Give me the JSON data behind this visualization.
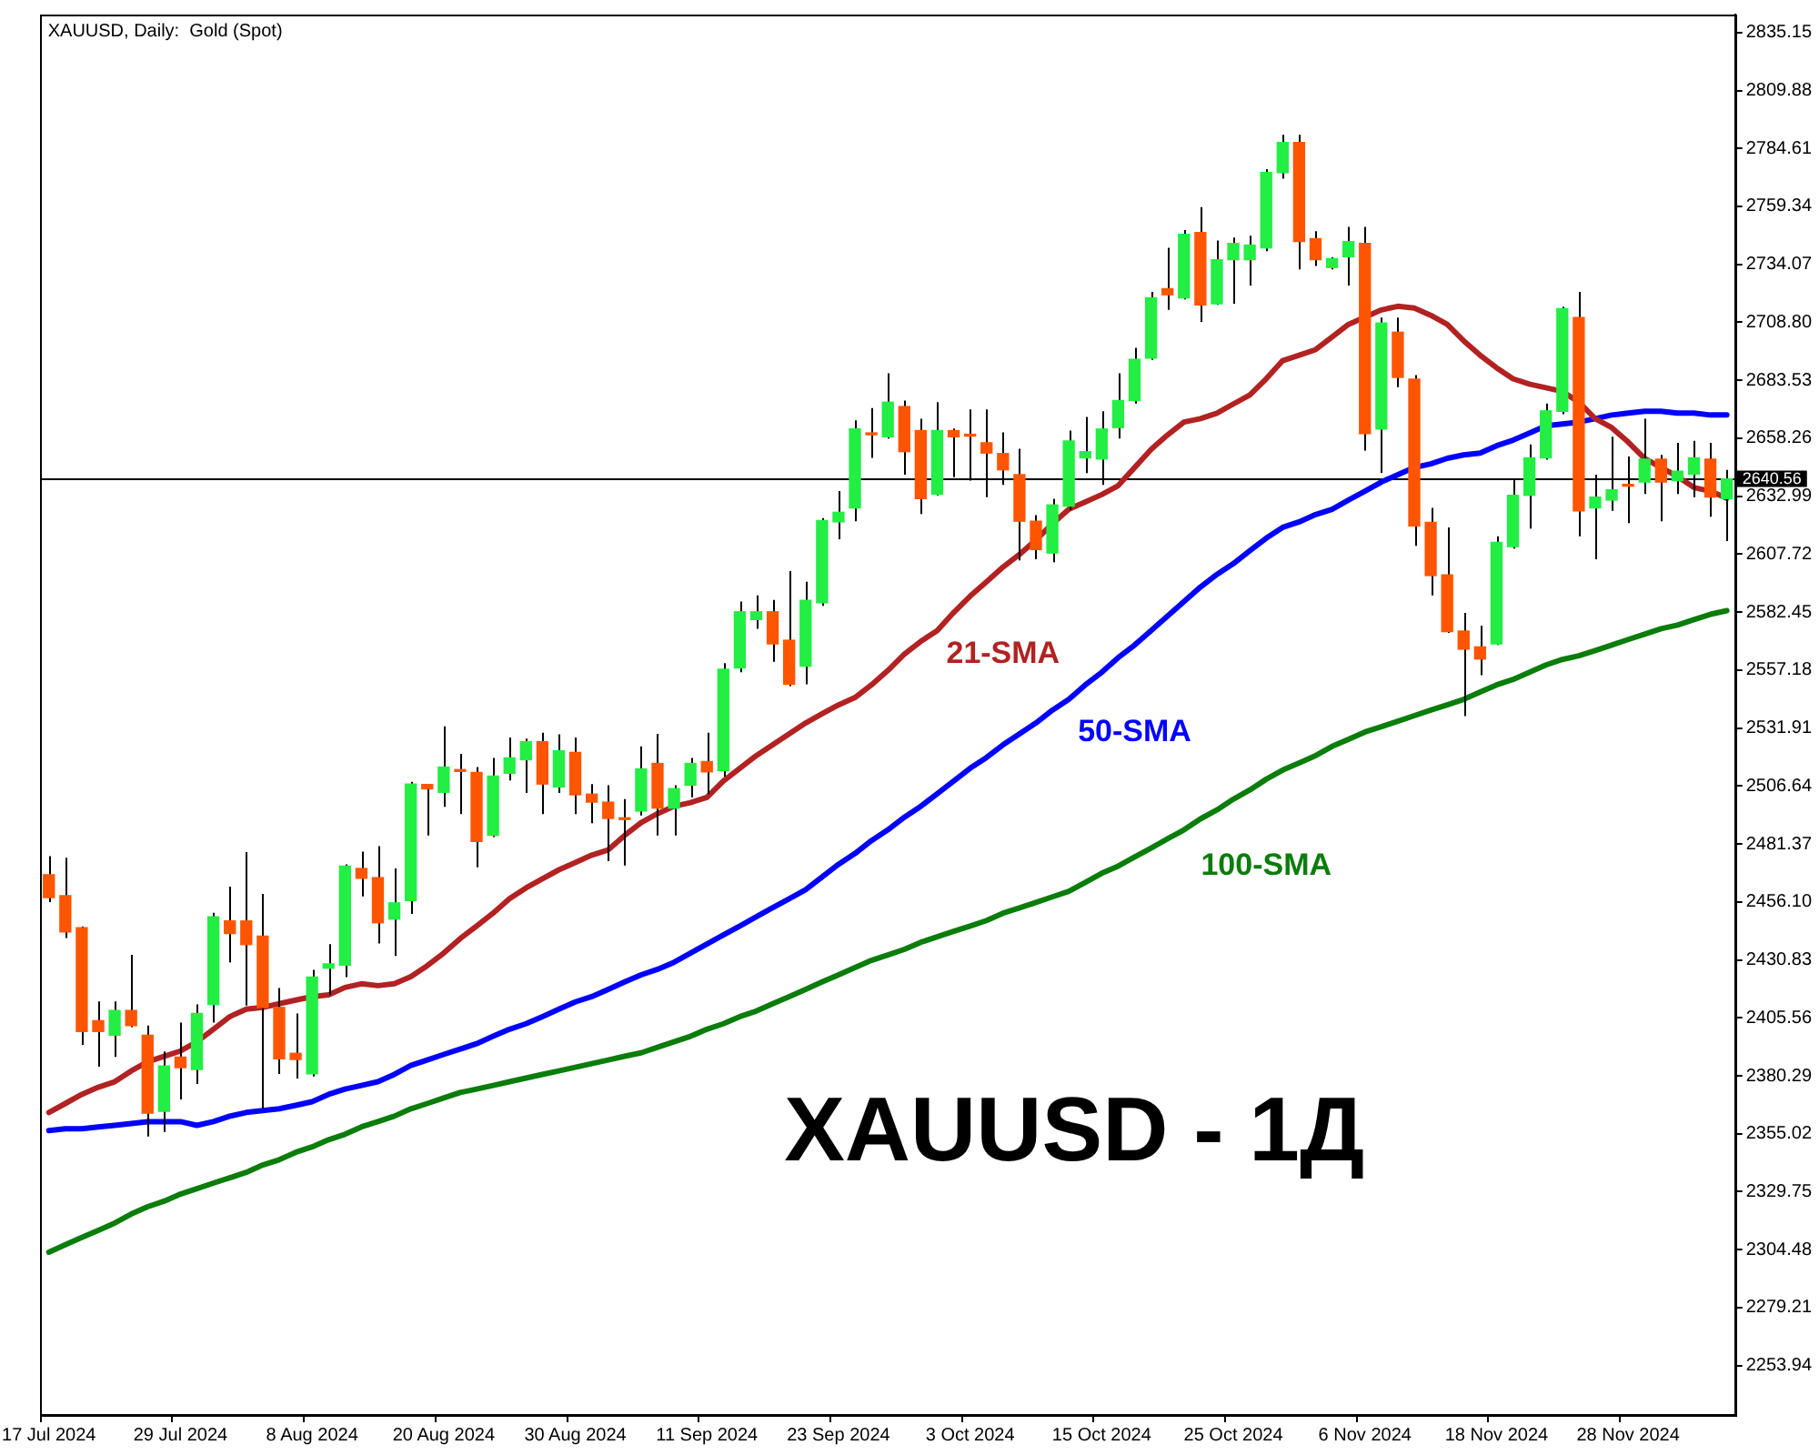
{
  "chart_data": {
    "type": "candlestick",
    "title": "XAUUSD, Daily:  Gold (Spot)",
    "categories": [
      "17 Jul 2024",
      null,
      null,
      null,
      null,
      null,
      null,
      null,
      "29 Jul 2024",
      null,
      null,
      null,
      null,
      null,
      null,
      null,
      "8 Aug 2024",
      null,
      null,
      null,
      null,
      null,
      null,
      null,
      "20 Aug 2024",
      null,
      null,
      null,
      null,
      null,
      null,
      null,
      "30 Aug 2024",
      null,
      null,
      null,
      null,
      null,
      null,
      null,
      "11 Sep 2024",
      null,
      null,
      null,
      null,
      null,
      null,
      null,
      "23 Sep 2024",
      null,
      null,
      null,
      null,
      null,
      null,
      null,
      "3 Oct 2024",
      null,
      null,
      null,
      null,
      null,
      null,
      null,
      "15 Oct 2024",
      null,
      null,
      null,
      null,
      null,
      null,
      null,
      "25 Oct 2024",
      null,
      null,
      null,
      null,
      null,
      null,
      null,
      "6 Nov 2024",
      null,
      null,
      null,
      null,
      null,
      null,
      null,
      "18 Nov 2024",
      null,
      null,
      null,
      null,
      null,
      null,
      null,
      "28 Nov 2024",
      null,
      null,
      null,
      null,
      null,
      null
    ],
    "ohlc": [
      [
        2468,
        2476,
        2456,
        2458
      ],
      [
        2458.8,
        2475.4,
        2440.4,
        2443
      ],
      [
        2444.9,
        2445.4,
        2393.8,
        2399.6
      ],
      [
        2404.3,
        2412.7,
        2384.3,
        2399.6
      ],
      [
        2398,
        2412.7,
        2388.5,
        2408.8
      ],
      [
        2408.8,
        2433,
        2401.5,
        2402.2
      ],
      [
        2398,
        2402.2,
        2353.8,
        2364
      ],
      [
        2364.8,
        2390.9,
        2355.8,
        2384.6
      ],
      [
        2388.5,
        2403.5,
        2370,
        2383.8
      ],
      [
        2383,
        2411.4,
        2376.7,
        2407.5
      ],
      [
        2411.4,
        2451.4,
        2403.5,
        2449.6
      ],
      [
        2447.8,
        2462.8,
        2429.8,
        2442.3
      ],
      [
        2447.8,
        2477.8,
        2410.9,
        2437.5
      ],
      [
        2441.2,
        2459.6,
        2365.9,
        2410.1
      ],
      [
        2410.1,
        2418.6,
        2381.1,
        2387.7
      ],
      [
        2390.1,
        2407.5,
        2379.1,
        2387.4
      ],
      [
        2381.1,
        2426.5,
        2380,
        2423.3
      ],
      [
        2427.2,
        2437.7,
        2415.4,
        2429.1
      ],
      [
        2428.5,
        2472.5,
        2423.3,
        2471.7
      ],
      [
        2470.7,
        2478,
        2458.5,
        2466.4
      ],
      [
        2466.7,
        2480.4,
        2438,
        2447
      ],
      [
        2448.6,
        2470.7,
        2432.5,
        2455.7
      ],
      [
        2456.7,
        2508.5,
        2450.9,
        2507.5
      ],
      [
        2507.3,
        2507.5,
        2485.1,
        2505.4
      ],
      [
        2503.9,
        2532.6,
        2497.6,
        2514.9
      ],
      [
        2513.8,
        2520.7,
        2494.4,
        2513
      ],
      [
        2512.6,
        2514.9,
        2471.2,
        2482.5
      ],
      [
        2485.1,
        2518.9,
        2484.4,
        2511
      ],
      [
        2512.2,
        2527.8,
        2509.1,
        2518.9
      ],
      [
        2518.1,
        2527.3,
        2503.6,
        2526
      ],
      [
        2526,
        2529.9,
        2494.4,
        2507.5
      ],
      [
        2506.2,
        2529.2,
        2503.6,
        2522
      ],
      [
        2521.3,
        2527.8,
        2494.4,
        2502.8
      ],
      [
        2503.1,
        2507.5,
        2490.4,
        2499.6
      ],
      [
        2499.6,
        2507,
        2473.9,
        2492.5
      ],
      [
        2492.5,
        2500.9,
        2472,
        2492
      ],
      [
        2495.7,
        2523.9,
        2493.8,
        2514.1
      ],
      [
        2516.5,
        2529.4,
        2485.1,
        2497
      ],
      [
        2497,
        2507,
        2485.1,
        2505.5
      ],
      [
        2507,
        2518.9,
        2501.7,
        2516.5
      ],
      [
        2517.3,
        2529.9,
        2503.1,
        2512.8
      ],
      [
        2513.4,
        2560.2,
        2510.7,
        2557.6
      ],
      [
        2558.1,
        2587.1,
        2556.2,
        2582.6
      ],
      [
        2579.2,
        2589.7,
        2575.2,
        2582.6
      ],
      [
        2582.6,
        2587.8,
        2560.8,
        2568.6
      ],
      [
        2570.2,
        2600.3,
        2550.2,
        2551
      ],
      [
        2558.9,
        2595.7,
        2551,
        2587.6
      ],
      [
        2586.5,
        2623.4,
        2585.2,
        2622.4
      ],
      [
        2621.8,
        2635.2,
        2614.2,
        2626
      ],
      [
        2627.9,
        2666.1,
        2622.1,
        2662.3
      ],
      [
        2660.3,
        2671.4,
        2649.7,
        2659.8
      ],
      [
        2658.9,
        2686.6,
        2658.1,
        2674
      ],
      [
        2672.1,
        2674.7,
        2642.4,
        2652.4
      ],
      [
        2661.6,
        2666.8,
        2625.2,
        2631.9
      ],
      [
        2633.9,
        2674,
        2633.4,
        2661.6
      ],
      [
        2661.6,
        2662.5,
        2641.3,
        2658.9
      ],
      [
        2659.7,
        2670.8,
        2639.8,
        2659.2
      ],
      [
        2656.3,
        2670.8,
        2632.6,
        2651.8
      ],
      [
        2651.6,
        2660.8,
        2637.9,
        2644.5
      ],
      [
        2642.4,
        2653.7,
        2605,
        2622.1
      ],
      [
        2622.1,
        2624.7,
        2605.5,
        2609.7
      ],
      [
        2608.2,
        2631.9,
        2604.2,
        2629.2
      ],
      [
        2628.7,
        2661.6,
        2627,
        2657.1
      ],
      [
        2649.7,
        2667.6,
        2643.1,
        2652.4
      ],
      [
        2649.2,
        2670,
        2637.9,
        2662.3
      ],
      [
        2662.9,
        2686.6,
        2658.1,
        2674.7
      ],
      [
        2674.7,
        2697.7,
        2673.4,
        2692.7
      ],
      [
        2693.2,
        2722.1,
        2692.4,
        2719.5
      ],
      [
        2723.5,
        2741.3,
        2714.2,
        2720.8
      ],
      [
        2719.5,
        2749,
        2718.8,
        2747.2
      ],
      [
        2748,
        2759,
        2709,
        2716.4
      ],
      [
        2716.9,
        2744.5,
        2716.4,
        2736.1
      ],
      [
        2736.1,
        2745.8,
        2716.9,
        2743.2
      ],
      [
        2736.1,
        2746.6,
        2724.8,
        2742.5
      ],
      [
        2741.3,
        2775.6,
        2739.8,
        2774.1
      ],
      [
        2774.1,
        2790.6,
        2771.4,
        2787.2
      ],
      [
        2787.2,
        2790.6,
        2731.9,
        2744
      ],
      [
        2745.3,
        2748.5,
        2733.4,
        2736.1
      ],
      [
        2732.7,
        2737.2,
        2731.9,
        2736.6
      ],
      [
        2737.4,
        2750.4,
        2724.8,
        2744
      ],
      [
        2743.2,
        2750.4,
        2652.9,
        2660.3
      ],
      [
        2662.3,
        2710.9,
        2643.2,
        2708.5
      ],
      [
        2704.5,
        2710.9,
        2680.5,
        2684.8
      ],
      [
        2684,
        2685.8,
        2611.3,
        2620
      ],
      [
        2621.6,
        2627.9,
        2589.7,
        2598.4
      ],
      [
        2598.7,
        2619.4,
        2573.4,
        2573.9
      ],
      [
        2574.2,
        2582.1,
        2537.1,
        2566.3
      ],
      [
        2567.3,
        2576.6,
        2554.9,
        2562
      ],
      [
        2568.6,
        2615.5,
        2568.1,
        2612.9
      ],
      [
        2611,
        2640,
        2610.2,
        2633.4
      ],
      [
        2633.4,
        2655.6,
        2618.9,
        2649.7
      ],
      [
        2649.7,
        2673.4,
        2648.9,
        2670.2
      ],
      [
        2670,
        2715.6,
        2668.7,
        2714.8
      ],
      [
        2710.9,
        2722.1,
        2615.5,
        2626.6
      ],
      [
        2627.9,
        2642.4,
        2605.5,
        2632.6
      ],
      [
        2631.3,
        2658.9,
        2626.6,
        2635.8
      ],
      [
        2637.9,
        2650.3,
        2621.3,
        2637.4
      ],
      [
        2639.2,
        2666.8,
        2633.9,
        2649.2
      ],
      [
        2649.2,
        2651,
        2622.1,
        2639.2
      ],
      [
        2639.8,
        2656.3,
        2633.9,
        2643.9
      ],
      [
        2642.6,
        2657.1,
        2632.6,
        2649.7
      ],
      [
        2649.2,
        2656.3,
        2624,
        2632.6
      ],
      [
        2631.9,
        2644.5,
        2613.4,
        2640.56
      ]
    ],
    "colors": [
      "#ff5500",
      "#ff5500",
      "#ff5500",
      "#ff5500",
      "#22ee44",
      "#ff5500",
      "#ff5500",
      "#22ee44",
      "#ff5500",
      "#22ee44",
      "#22ee44",
      "#ff5500",
      "#ff5500",
      "#ff5500",
      "#ff5500",
      "#ff5500",
      "#22ee44",
      "#22ee44",
      "#22ee44",
      "#ff5500",
      "#ff5500",
      "#22ee44",
      "#22ee44",
      "#ff5500",
      "#22ee44",
      "#ff5500",
      "#ff5500",
      "#22ee44",
      "#22ee44",
      "#22ee44",
      "#ff5500",
      "#22ee44",
      "#ff5500",
      "#ff5500",
      "#ff5500",
      "#ff5500",
      "#22ee44",
      "#ff5500",
      "#22ee44",
      "#22ee44",
      "#ff5500",
      "#22ee44",
      "#22ee44",
      "#22ee44",
      "#ff5500",
      "#ff5500",
      "#22ee44",
      "#22ee44",
      "#22ee44",
      "#22ee44",
      "#ff5500",
      "#22ee44",
      "#ff5500",
      "#ff5500",
      "#22ee44",
      "#ff5500",
      "#ff5500",
      "#ff5500",
      "#ff5500",
      "#ff5500",
      "#ff5500",
      "#22ee44",
      "#22ee44",
      "#22ee44",
      "#22ee44",
      "#22ee44",
      "#22ee44",
      "#22ee44",
      "#ff5500",
      "#22ee44",
      "#ff5500",
      "#22ee44",
      "#22ee44",
      "#22ee44",
      "#22ee44",
      "#22ee44",
      "#ff5500",
      "#ff5500",
      "#22ee44",
      "#22ee44",
      "#ff5500",
      "#22ee44",
      "#ff5500",
      "#ff5500",
      "#ff5500",
      "#ff5500",
      "#ff5500",
      "#ff5500",
      "#22ee44",
      "#22ee44",
      "#22ee44",
      "#22ee44",
      "#22ee44",
      "#ff5500",
      "#22ee44",
      "#22ee44",
      "#ff5500",
      "#22ee44",
      "#ff5500",
      "#22ee44",
      "#22ee44",
      "#ff5500",
      "#22ee44"
    ],
    "series": [
      {
        "type": "line",
        "name": "21-SMA",
        "color": "#b22222",
        "values": [
          2364.3,
          2368.2,
          2372.2,
          2375.3,
          2377.7,
          2382.4,
          2386.4,
          2388.8,
          2391.1,
          2395.1,
          2400.6,
          2406.1,
          2409.3,
          2410.1,
          2411.7,
          2413.3,
          2414.8,
          2415.6,
          2418.8,
          2420.4,
          2419.6,
          2420.4,
          2423.5,
          2428.3,
          2433.8,
          2440.1,
          2445.6,
          2451.2,
          2457.5,
          2462.2,
          2466.2,
          2470.1,
          2473.3,
          2476.5,
          2478.8,
          2485.1,
          2490.7,
          2494.6,
          2497.8,
          2499.4,
          2501.7,
          2508.8,
          2514.4,
          2519.9,
          2524.6,
          2529.4,
          2534.1,
          2538.1,
          2542,
          2545.2,
          2550.7,
          2557,
          2564.1,
          2569.7,
          2574.4,
          2582.3,
          2589.4,
          2595.7,
          2602.1,
          2607.6,
          2613.9,
          2621,
          2627.3,
          2630.5,
          2633.7,
          2637.6,
          2645.5,
          2653.4,
          2659.7,
          2665.3,
          2666.8,
          2669.2,
          2673.2,
          2677.1,
          2684.2,
          2692.1,
          2694.5,
          2696.9,
          2702.4,
          2707.9,
          2711.1,
          2714.2,
          2715.8,
          2715,
          2711.9,
          2707.9,
          2700.8,
          2694.5,
          2689,
          2684.2,
          2681.9,
          2680.3,
          2678.7,
          2674,
          2666.8,
          2662.9,
          2656.6,
          2649.5,
          2645.5,
          2641.6,
          2636.8,
          2635.2,
          2632.1
        ]
      },
      {
        "type": "line",
        "name": "50-SMA",
        "color": "#0000ff",
        "values": [
          2356.4,
          2357.2,
          2357.2,
          2358,
          2358.7,
          2359.5,
          2360.3,
          2360.3,
          2360.3,
          2358.7,
          2360.3,
          2362.7,
          2364.3,
          2365.1,
          2365.9,
          2367.4,
          2369,
          2372.2,
          2374.5,
          2376.1,
          2377.7,
          2380.9,
          2384.8,
          2387.2,
          2389.6,
          2391.9,
          2394.3,
          2397.5,
          2400.6,
          2403,
          2406.1,
          2409.3,
          2412.5,
          2414.8,
          2418,
          2421.2,
          2424.3,
          2426.7,
          2429.8,
          2433.8,
          2437.7,
          2441.7,
          2445.6,
          2449.6,
          2453.6,
          2457.5,
          2461.4,
          2467,
          2472.5,
          2477.2,
          2482.8,
          2487.5,
          2493,
          2497.8,
          2503.3,
          2508.8,
          2514.4,
          2519.1,
          2524.6,
          2529.4,
          2534.1,
          2539.7,
          2544.4,
          2550.7,
          2556.2,
          2562.6,
          2568.1,
          2574.4,
          2580.7,
          2587.1,
          2593.4,
          2598.9,
          2603.6,
          2609.2,
          2614.7,
          2619.4,
          2621.8,
          2625,
          2627.3,
          2631.3,
          2635.2,
          2639.2,
          2642.4,
          2645.5,
          2647.1,
          2649.5,
          2651,
          2651.8,
          2655,
          2657.4,
          2660.5,
          2663.7,
          2664.5,
          2665.3,
          2666.8,
          2668.4,
          2669.2,
          2670,
          2670,
          2669.2,
          2669.2,
          2668.4,
          2668.4
        ]
      },
      {
        "type": "line",
        "name": "100-SMA",
        "color": "#0a7d0a",
        "values": [
          2303.4,
          2306.6,
          2309.8,
          2312.9,
          2316.1,
          2320,
          2323.2,
          2325.6,
          2328.7,
          2331.1,
          2333.5,
          2335.8,
          2338.2,
          2341.4,
          2343.7,
          2346.9,
          2349.3,
          2352.4,
          2354.8,
          2358,
          2360.3,
          2362.7,
          2365.9,
          2368.2,
          2370.6,
          2373,
          2374.5,
          2376.1,
          2377.7,
          2379.3,
          2380.9,
          2382.4,
          2384,
          2385.6,
          2387.2,
          2388.8,
          2390.3,
          2392.7,
          2395.1,
          2397.5,
          2400.6,
          2403,
          2406.1,
          2408.5,
          2411.7,
          2414.8,
          2418,
          2421.2,
          2424.3,
          2427.5,
          2430.6,
          2433,
          2435.4,
          2438.5,
          2440.9,
          2443.3,
          2445.6,
          2448,
          2451.2,
          2453.5,
          2455.9,
          2458.3,
          2460.7,
          2464.6,
          2468.6,
          2471.7,
          2475.7,
          2479.6,
          2483.6,
          2487.5,
          2492.3,
          2496.2,
          2500.9,
          2504.9,
          2509.6,
          2513.6,
          2516.7,
          2519.9,
          2523.9,
          2527,
          2530.2,
          2532.5,
          2534.9,
          2537.3,
          2539.7,
          2542,
          2544.4,
          2547.6,
          2550.7,
          2553.1,
          2556.2,
          2559.4,
          2561.8,
          2563.4,
          2565.7,
          2568.1,
          2570.5,
          2572.8,
          2575.2,
          2576.8,
          2579.2,
          2581.5,
          2583.1
        ]
      }
    ],
    "ylim": [
      2232.4,
      2843
    ],
    "yticks": [
      {
        "value": 2253.94,
        "label": "2253.94"
      },
      {
        "value": 2279.21,
        "label": "2279.21"
      },
      {
        "value": 2304.48,
        "label": "2304.48"
      },
      {
        "value": 2329.75,
        "label": "2329.75"
      },
      {
        "value": 2355.02,
        "label": "2355.02"
      },
      {
        "value": 2380.29,
        "label": "2380.29"
      },
      {
        "value": 2405.56,
        "label": "2405.56"
      },
      {
        "value": 2430.83,
        "label": "2430.83"
      },
      {
        "value": 2456.1,
        "label": "2456.10"
      },
      {
        "value": 2481.37,
        "label": "2481.37"
      },
      {
        "value": 2506.64,
        "label": "2506.64"
      },
      {
        "value": 2531.91,
        "label": "2531.91"
      },
      {
        "value": 2557.18,
        "label": "2557.18"
      },
      {
        "value": 2582.45,
        "label": "2582.45"
      },
      {
        "value": 2607.72,
        "label": "2607.72"
      },
      {
        "value": 2632.99,
        "label": "2632.99"
      },
      {
        "value": 2658.26,
        "label": "2658.26"
      },
      {
        "value": 2683.53,
        "label": "2683.53"
      },
      {
        "value": 2708.8,
        "label": "2708.80"
      },
      {
        "value": 2734.07,
        "label": "2734.07"
      },
      {
        "value": 2759.34,
        "label": "2759.34"
      },
      {
        "value": 2784.61,
        "label": "2784.61"
      },
      {
        "value": 2809.88,
        "label": "2809.88"
      },
      {
        "value": 2835.15,
        "label": "2835.15"
      }
    ],
    "ref_lines": [
      {
        "axis": "y",
        "value": 2640.56,
        "label": "2640.56",
        "color": "#000000"
      }
    ],
    "annotations": [
      "XAUUSD - 1Д"
    ],
    "grid": false,
    "legend": false
  }
}
